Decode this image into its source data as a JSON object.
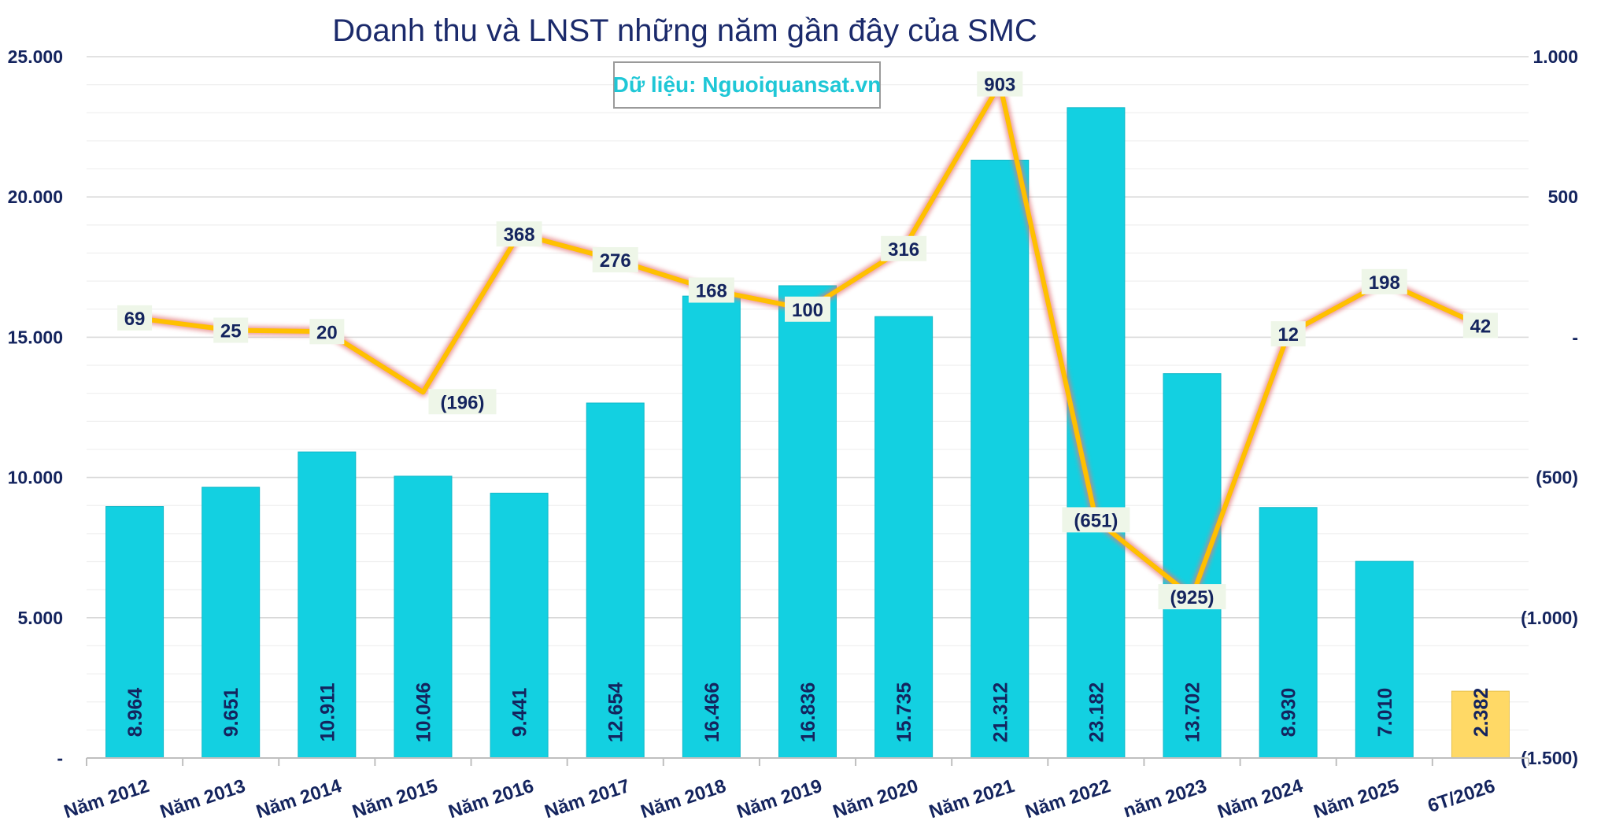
{
  "chart_data": {
    "type": "bar",
    "title": "Doanh thu và LNST những năm gần đây của SMC",
    "source_note": "Dữ liệu: Nguoiquansat.vn",
    "categories": [
      "Năm 2012",
      "Năm 2013",
      "Năm 2014",
      "Năm 2015",
      "Năm 2016",
      "Năm 2017",
      "Năm 2018",
      "Năm 2019",
      "Năm 2020",
      "Năm 2021",
      "Năm 2022",
      "năm 2023",
      "Năm 2024",
      "Năm 2025",
      "6T/2026"
    ],
    "series": [
      {
        "type": "bar",
        "axis": "left",
        "values": [
          8964,
          9651,
          10911,
          10046,
          9441,
          12654,
          16466,
          16836,
          15735,
          21312,
          23182,
          13702,
          8930,
          7010,
          2382
        ],
        "labels": [
          "8.964",
          "9.651",
          "10.911",
          "10.046",
          "9.441",
          "12.654",
          "16.466",
          "16.836",
          "15.735",
          "21.312",
          "23.182",
          "13.702",
          "8.930",
          "7.010",
          "2.382"
        ],
        "color": "#13d0e1",
        "highlight_last_color": "#ffd966"
      },
      {
        "type": "line",
        "axis": "right",
        "values": [
          69,
          25,
          20,
          -196,
          368,
          276,
          168,
          100,
          316,
          903,
          -651,
          -925,
          12,
          198,
          42
        ],
        "labels": [
          "69",
          "25",
          "20",
          "(196)",
          "368",
          "276",
          "168",
          "100",
          "316",
          "903",
          "(651)",
          "(925)",
          "12",
          "198",
          "42"
        ],
        "color": "#ffc000"
      }
    ],
    "left_axis": {
      "range": [
        0,
        25000
      ],
      "ticks": [
        0,
        5000,
        10000,
        15000,
        20000,
        25000
      ],
      "tick_labels": [
        "-",
        "5.000",
        "10.000",
        "15.000",
        "20.000",
        "25.000"
      ]
    },
    "right_axis": {
      "range": [
        -1500,
        1000
      ],
      "ticks": [
        -1500,
        -1000,
        -500,
        0,
        500,
        1000
      ],
      "tick_labels": [
        "(1.500)",
        "(1.000)",
        "(500)",
        "-",
        "500",
        "1.000"
      ]
    },
    "grid": true,
    "legend": "none"
  }
}
